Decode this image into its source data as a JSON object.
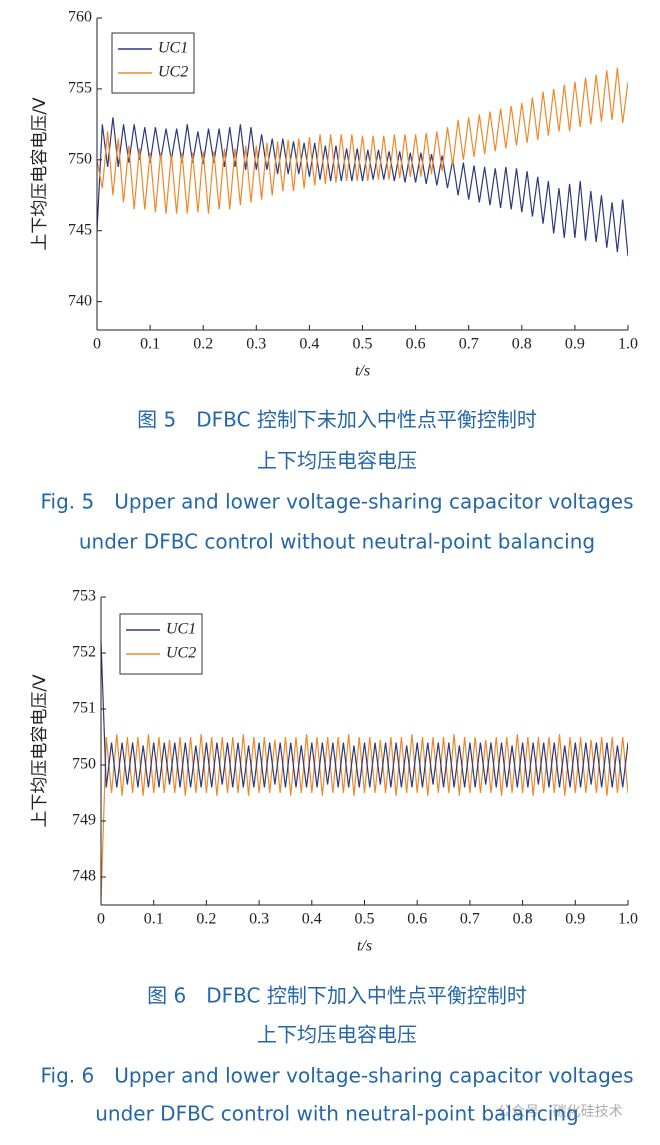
{
  "chart_data": [
    {
      "type": "line",
      "y_label": "上下均压电容电压/V",
      "x_label": "t/s",
      "xlim": [
        0,
        1
      ],
      "ylim": [
        738,
        760
      ],
      "xticks": [
        0,
        0.1,
        0.2,
        0.3,
        0.4,
        0.5,
        0.6,
        0.7,
        0.8,
        0.9,
        {
          "value": 1,
          "label": "1.0"
        }
      ],
      "yticks": [
        740,
        745,
        750,
        755,
        760
      ],
      "legend": "upper left",
      "x": [
        0,
        0.01,
        0.02,
        0.03,
        0.04,
        0.05,
        0.06,
        0.07,
        0.08,
        0.09,
        0.1,
        0.11,
        0.12,
        0.13,
        0.14,
        0.15,
        0.16,
        0.17,
        0.18,
        0.19,
        0.2,
        0.21,
        0.22,
        0.23,
        0.24,
        0.25,
        0.26,
        0.27,
        0.28,
        0.29,
        0.3,
        0.31,
        0.32,
        0.33,
        0.34,
        0.35,
        0.36,
        0.37,
        0.38,
        0.39,
        0.4,
        0.41,
        0.42,
        0.43,
        0.44,
        0.45,
        0.46,
        0.47,
        0.48,
        0.49,
        0.5,
        0.51,
        0.52,
        0.53,
        0.54,
        0.55,
        0.56,
        0.57,
        0.58,
        0.59,
        0.6,
        0.61,
        0.62,
        0.63,
        0.64,
        0.65,
        0.66,
        0.67,
        0.68,
        0.69,
        0.7,
        0.71,
        0.72,
        0.73,
        0.74,
        0.75,
        0.76,
        0.77,
        0.78,
        0.79,
        0.8,
        0.81,
        0.82,
        0.83,
        0.84,
        0.85,
        0.86,
        0.87,
        0.88,
        0.89,
        0.9,
        0.91,
        0.92,
        0.93,
        0.94,
        0.95,
        0.96,
        0.97,
        0.98,
        0.99,
        1
      ],
      "series": [
        {
          "name": "UC1",
          "color": "#2b3a7e",
          "values": [
            745,
            752.5,
            749.5,
            753,
            749.5,
            752.5,
            749.8,
            752.5,
            750,
            752.3,
            749.8,
            752.3,
            750,
            752.2,
            750,
            752.2,
            749.8,
            752.5,
            749.8,
            752,
            749.7,
            752.2,
            749.8,
            752.2,
            749.5,
            752.3,
            749.5,
            752.5,
            749.3,
            752.3,
            749.3,
            751.8,
            749.3,
            751.5,
            749,
            751.5,
            749,
            751.3,
            749,
            751.2,
            748.8,
            751.2,
            748.6,
            751,
            748.5,
            751,
            748.5,
            750.8,
            748.5,
            750.8,
            748.5,
            750.7,
            748.6,
            750.7,
            748.6,
            750.6,
            748.5,
            750.6,
            748.4,
            750.5,
            748.4,
            750.5,
            748.3,
            750.4,
            748.2,
            750.3,
            748,
            750,
            747.5,
            749.8,
            747.2,
            749.6,
            747,
            749.5,
            746.8,
            749.4,
            746.6,
            749.5,
            746.5,
            749.4,
            746.3,
            749.2,
            746,
            748.8,
            745.5,
            748.5,
            744.8,
            748,
            744.5,
            748.3,
            744.5,
            748.5,
            744.3,
            747.8,
            744.2,
            747.5,
            743.8,
            747,
            743.5,
            747.2,
            743.2
          ]
        },
        {
          "name": "UC2",
          "color": "#f0882a",
          "values": [
            750,
            748,
            752,
            747.5,
            751.5,
            747,
            751,
            746.5,
            750.8,
            746.5,
            750.5,
            746.3,
            750.5,
            746.2,
            750.4,
            746.2,
            750.5,
            746.2,
            750.5,
            746.3,
            750.6,
            746.2,
            750.6,
            746.5,
            750.8,
            746.5,
            750.8,
            746.8,
            751,
            747,
            751,
            747.2,
            751.2,
            747.5,
            751.3,
            747.8,
            751.4,
            747.8,
            751.5,
            748,
            751.6,
            748.2,
            751.8,
            748.3,
            751.8,
            748.4,
            751.8,
            748.5,
            751.8,
            748.5,
            751.7,
            748.5,
            751.7,
            748.6,
            751.7,
            748.6,
            751.8,
            748.7,
            751.8,
            748.8,
            751.8,
            748.8,
            751.9,
            749,
            752,
            749.2,
            752.3,
            749.6,
            752.8,
            750,
            753,
            750.2,
            753.2,
            750.4,
            753.4,
            750.6,
            753.6,
            750.8,
            753.8,
            751,
            754,
            751.2,
            754.4,
            751.4,
            754.8,
            751.7,
            755,
            752,
            755.3,
            752,
            755.5,
            752.3,
            755.8,
            752.5,
            756,
            752.7,
            756.3,
            752.8,
            756.5,
            752.6,
            755.5
          ]
        }
      ]
    },
    {
      "type": "line",
      "y_label": "上下均压电容电压/V",
      "x_label": "t/s",
      "xlim": [
        0,
        1
      ],
      "ylim": [
        747.5,
        753
      ],
      "xticks": [
        0,
        0.1,
        0.2,
        0.3,
        0.4,
        0.5,
        0.6,
        0.7,
        0.8,
        0.9,
        {
          "value": 1,
          "label": "1.0"
        }
      ],
      "yticks": [
        748,
        749,
        750,
        751,
        752,
        753
      ],
      "legend": "upper left",
      "x": [
        0,
        0.01,
        0.02,
        0.03,
        0.04,
        0.05,
        0.06,
        0.07,
        0.08,
        0.09,
        0.1,
        0.11,
        0.12,
        0.13,
        0.14,
        0.15,
        0.16,
        0.17,
        0.18,
        0.19,
        0.2,
        0.21,
        0.22,
        0.23,
        0.24,
        0.25,
        0.26,
        0.27,
        0.28,
        0.29,
        0.3,
        0.31,
        0.32,
        0.33,
        0.34,
        0.35,
        0.36,
        0.37,
        0.38,
        0.39,
        0.4,
        0.41,
        0.42,
        0.43,
        0.44,
        0.45,
        0.46,
        0.47,
        0.48,
        0.49,
        0.5,
        0.51,
        0.52,
        0.53,
        0.54,
        0.55,
        0.56,
        0.57,
        0.58,
        0.59,
        0.6,
        0.61,
        0.62,
        0.63,
        0.64,
        0.65,
        0.66,
        0.67,
        0.68,
        0.69,
        0.7,
        0.71,
        0.72,
        0.73,
        0.74,
        0.75,
        0.76,
        0.77,
        0.78,
        0.79,
        0.8,
        0.81,
        0.82,
        0.83,
        0.84,
        0.85,
        0.86,
        0.87,
        0.88,
        0.89,
        0.9,
        0.91,
        0.92,
        0.93,
        0.94,
        0.95,
        0.96,
        0.97,
        0.98,
        0.99,
        1
      ],
      "series": [
        {
          "name": "UC2",
          "color": "#f0882a",
          "values": [
            747.6,
            750.5,
            749.5,
            750.55,
            749.45,
            750.5,
            749.5,
            750.5,
            749.45,
            750.55,
            749.5,
            750.5,
            749.5,
            750.45,
            749.5,
            750.5,
            749.45,
            750.5,
            749.5,
            750.55,
            749.5,
            750.5,
            749.45,
            750.5,
            749.5,
            750.5,
            749.5,
            750.55,
            749.45,
            750.5,
            749.5,
            750.5,
            749.5,
            750.45,
            749.5,
            750.5,
            749.45,
            750.5,
            749.5,
            750.55,
            749.5,
            750.5,
            749.45,
            750.5,
            749.5,
            750.5,
            749.5,
            750.55,
            749.45,
            750.5,
            749.5,
            750.5,
            749.5,
            750.45,
            749.5,
            750.5,
            749.45,
            750.5,
            749.5,
            750.55,
            749.5,
            750.5,
            749.45,
            750.5,
            749.5,
            750.5,
            749.5,
            750.55,
            749.45,
            750.5,
            749.5,
            750.5,
            749.5,
            750.45,
            749.5,
            750.5,
            749.45,
            750.5,
            749.5,
            750.55,
            749.5,
            750.5,
            749.45,
            750.5,
            749.5,
            750.5,
            749.5,
            750.55,
            749.45,
            750.5,
            749.5,
            750.5,
            749.5,
            750.45,
            749.5,
            750.5,
            749.45,
            750.5,
            749.5,
            750.5,
            749.5
          ]
        },
        {
          "name": "UC1",
          "color": "#2b3a7e",
          "values": [
            752.2,
            749.6,
            750.4,
            749.6,
            750.4,
            749.65,
            750.4,
            749.6,
            750.35,
            749.6,
            750.4,
            749.6,
            750.4,
            749.65,
            750.4,
            749.6,
            750.4,
            749.6,
            750.35,
            749.6,
            750.4,
            749.6,
            750.4,
            749.65,
            750.4,
            749.6,
            750.4,
            749.6,
            750.35,
            749.6,
            750.4,
            749.6,
            750.4,
            749.65,
            750.4,
            749.6,
            750.4,
            749.6,
            750.35,
            749.6,
            750.4,
            749.6,
            750.4,
            749.65,
            750.4,
            749.6,
            750.4,
            749.6,
            750.35,
            749.6,
            750.4,
            749.6,
            750.4,
            749.65,
            750.4,
            749.6,
            750.4,
            749.6,
            750.35,
            749.6,
            750.4,
            749.6,
            750.4,
            749.65,
            750.4,
            749.6,
            750.4,
            749.6,
            750.35,
            749.6,
            750.4,
            749.6,
            750.4,
            749.65,
            750.4,
            749.6,
            750.4,
            749.6,
            750.35,
            749.6,
            750.4,
            749.6,
            750.4,
            749.65,
            750.4,
            749.6,
            750.4,
            749.6,
            750.35,
            749.6,
            750.4,
            749.6,
            750.4,
            749.65,
            750.4,
            749.6,
            750.4,
            749.6,
            750.35,
            749.6,
            750.4
          ]
        }
      ]
    }
  ],
  "captions": [
    {
      "cn": [
        "图 5　DFBC 控制下未加入中性点平衡控制时",
        "上下均压电容电压"
      ],
      "en": [
        "Fig. 5　Upper and lower voltage-sharing capacitor voltages",
        "under DFBC control without neutral-point balancing"
      ]
    },
    {
      "cn": [
        "图 6　DFBC 控制下加入中性点平衡控制时",
        "上下均压电容电压"
      ],
      "en": [
        "Fig. 6　Upper and lower voltage-sharing capacitor voltages",
        "under DFBC control with neutral-point balancing"
      ]
    }
  ],
  "watermark": "公众号 · 碳化硅技术"
}
